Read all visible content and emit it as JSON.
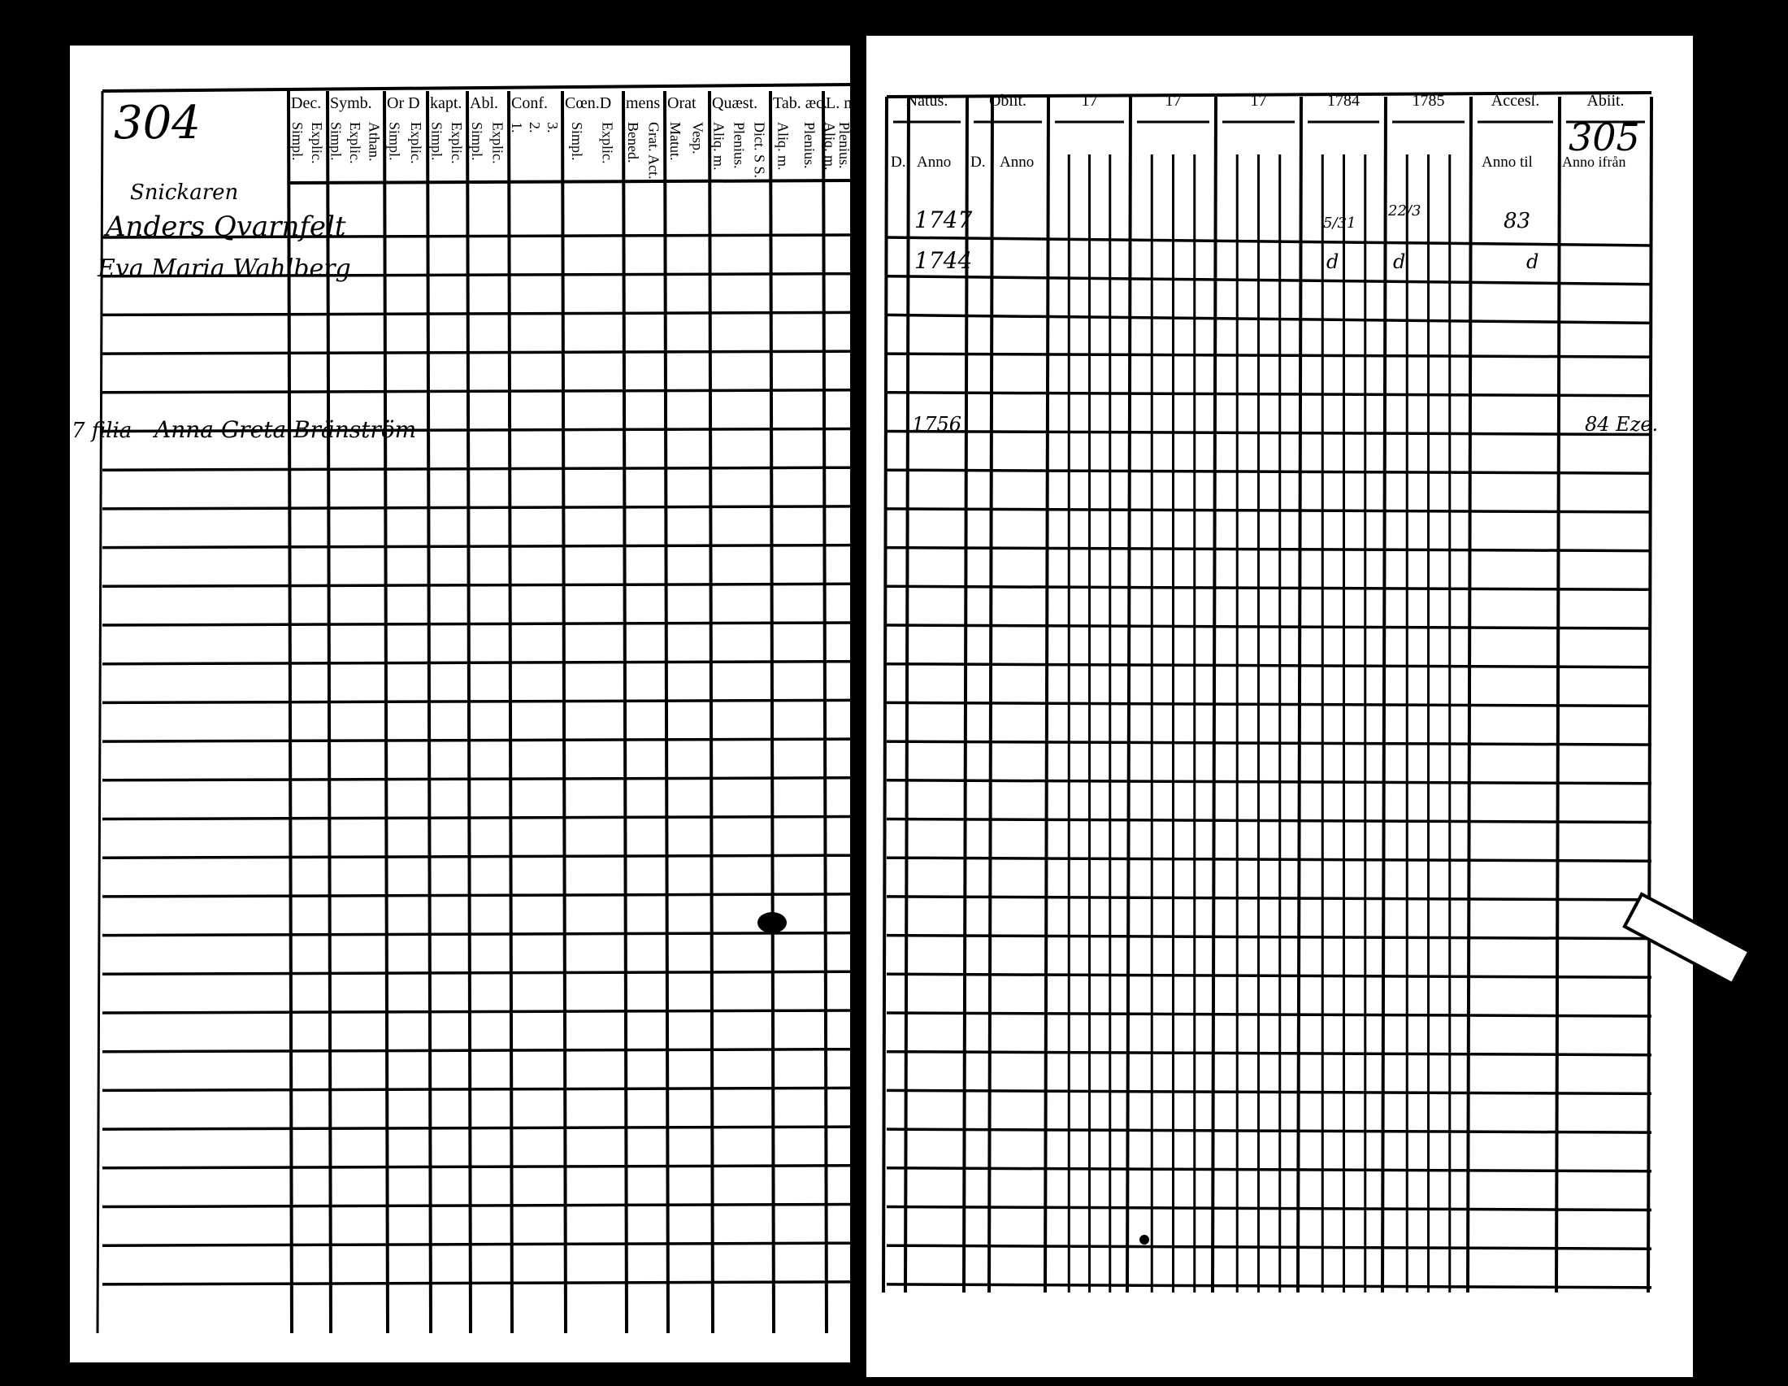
{
  "left_page": {
    "page_number": "304",
    "columns": [
      {
        "label": "Dec.",
        "sub": [
          "Explic.",
          "Simpl."
        ]
      },
      {
        "label": "Symb.",
        "sub": [
          "Athan.",
          "Explic.",
          "Simpl."
        ]
      },
      {
        "label": "Or D",
        "sub": [
          "Explic.",
          "Simpl."
        ]
      },
      {
        "label": "kapt.",
        "sub": [
          "Explic.",
          "Simpl."
        ]
      },
      {
        "label": "Abl.",
        "sub": [
          "Explic.",
          "Simpl."
        ]
      },
      {
        "label": "Conf.",
        "sub": [
          "3.",
          "2.",
          "1."
        ]
      },
      {
        "label": "Cœn.D",
        "sub": [
          "Explic.",
          "Simpl."
        ]
      },
      {
        "label": "mens",
        "sub": [
          "Grat. Act.",
          "Bened."
        ]
      },
      {
        "label": "Orat",
        "sub": [
          "Vesp.",
          "Matut."
        ]
      },
      {
        "label": "Quæst.",
        "sub": [
          "Dict. S S.",
          "Plenius.",
          "Aliq. m."
        ]
      },
      {
        "label": "Tab. æc.",
        "sub": [
          "Plenius.",
          "Aliq. m."
        ]
      },
      {
        "label": "L. m.",
        "sub": [
          "Plenius.",
          "Aliq. m."
        ]
      }
    ],
    "entries": [
      {
        "text": "Snickaren"
      },
      {
        "text": "Anders Qvarnfelt"
      },
      {
        "text": "Eva Maria Wahlberg"
      },
      {
        "text": "Anna Greta Bränström",
        "prefix": "7 filia"
      }
    ]
  },
  "right_page": {
    "page_number": "305",
    "columns": [
      {
        "label": "Natus.",
        "sub": [
          "D.",
          "Anno"
        ]
      },
      {
        "label": "Obiit.",
        "sub": [
          "D.",
          "Anno"
        ]
      },
      {
        "label": "17"
      },
      {
        "label": "17"
      },
      {
        "label": "17"
      },
      {
        "label": "1784"
      },
      {
        "label": "1785"
      },
      {
        "label": "Accesſ.",
        "sub": [
          "Anno til"
        ]
      },
      {
        "label": "Abiit.",
        "sub": [
          "Anno ifrån"
        ]
      }
    ],
    "entries": [
      {
        "natus_anno": "1747",
        "y1784": "5/31",
        "y1785": "22/3",
        "accessit": "83"
      },
      {
        "natus_anno": "1744",
        "y1784": "d",
        "y1785": "d",
        "accessit": "d"
      },
      {
        "natus_anno": "1756",
        "abiit": "84 Eze."
      }
    ]
  },
  "colors": {
    "paper": "#ffffff",
    "ink": "#000000",
    "background": "#000000"
  }
}
